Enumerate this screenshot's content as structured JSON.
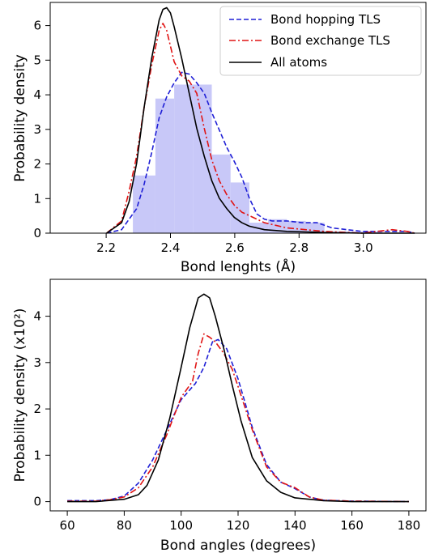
{
  "chart_data": [
    {
      "type": "line",
      "xlabel": "Bond lenghts (Å)",
      "ylabel": "Probability density",
      "xlim": [
        2.07,
        3.07
      ],
      "ylim": [
        0,
        6.6
      ],
      "xticks": [
        "2.2",
        "2.4",
        "2.6",
        "2.8",
        "3.0"
      ],
      "yticks": [
        "0",
        "1",
        "2",
        "3",
        "4",
        "5",
        "6"
      ],
      "legend": {
        "position": "top-right",
        "entries": [
          "Bond hopping TLS",
          "Bond exchange TLS",
          "All atoms"
        ]
      },
      "histogram": {
        "color": "#c8c8f8",
        "bin_edges": [
          2.29,
          2.35,
          2.4,
          2.45,
          2.5,
          2.55,
          2.6,
          2.65,
          2.7,
          2.75,
          2.8,
          2.85,
          2.9,
          2.95
        ],
        "values": [
          1.65,
          3.85,
          4.25,
          4.25,
          2.25,
          1.45,
          0.3,
          0.4,
          0.35,
          0.3,
          0.05,
          0.05,
          0.05
        ]
      },
      "series": [
        {
          "name": "Bond hopping TLS",
          "color": "#1f1fd6",
          "dash": "dashed",
          "x": [
            2.22,
            2.26,
            2.3,
            2.32,
            2.34,
            2.36,
            2.38,
            2.4,
            2.42,
            2.44,
            2.46,
            2.48,
            2.5,
            2.52,
            2.54,
            2.56,
            2.58,
            2.6,
            2.62,
            2.64,
            2.66,
            2.7,
            2.74,
            2.78,
            2.82,
            2.86,
            2.9,
            2.94,
            2.98,
            3.02,
            3.04
          ],
          "y": [
            0.0,
            0.1,
            0.7,
            1.4,
            2.3,
            3.3,
            3.9,
            4.3,
            4.6,
            4.55,
            4.3,
            4.0,
            3.45,
            2.95,
            2.45,
            2.05,
            1.6,
            1.0,
            0.55,
            0.4,
            0.35,
            0.35,
            0.3,
            0.3,
            0.15,
            0.1,
            0.05,
            0.05,
            0.05,
            0.05,
            0.0
          ]
        },
        {
          "name": "Bond exchange TLS",
          "color": "#e01414",
          "dash": "dashdot",
          "x": [
            2.22,
            2.26,
            2.28,
            2.3,
            2.32,
            2.34,
            2.36,
            2.37,
            2.38,
            2.4,
            2.42,
            2.44,
            2.46,
            2.48,
            2.5,
            2.52,
            2.54,
            2.56,
            2.58,
            2.6,
            2.64,
            2.7,
            2.8,
            2.9,
            2.98,
            3.02,
            3.04
          ],
          "y": [
            0.0,
            0.35,
            1.2,
            2.2,
            3.6,
            4.8,
            5.8,
            6.0,
            5.8,
            4.9,
            4.5,
            4.35,
            4.0,
            3.0,
            2.1,
            1.5,
            1.1,
            0.8,
            0.6,
            0.5,
            0.3,
            0.15,
            0.05,
            0.0,
            0.1,
            0.05,
            0.0
          ]
        },
        {
          "name": "All atoms",
          "color": "#000000",
          "dash": "solid",
          "x": [
            2.22,
            2.26,
            2.28,
            2.3,
            2.32,
            2.34,
            2.36,
            2.37,
            2.38,
            2.39,
            2.4,
            2.42,
            2.44,
            2.46,
            2.48,
            2.5,
            2.52,
            2.54,
            2.56,
            2.58,
            2.6,
            2.64,
            2.7,
            2.8,
            2.9,
            3.04
          ],
          "y": [
            0.0,
            0.3,
            0.9,
            2.0,
            3.6,
            5.0,
            6.1,
            6.4,
            6.45,
            6.3,
            5.9,
            5.0,
            4.0,
            3.0,
            2.2,
            1.5,
            1.0,
            0.7,
            0.45,
            0.3,
            0.2,
            0.1,
            0.05,
            0.02,
            0.0,
            0.0
          ]
        }
      ]
    },
    {
      "type": "line",
      "xlabel": "Bond angles (degrees)",
      "ylabel": "Probability density (x10²)",
      "xlim": [
        54,
        186
      ],
      "ylim": [
        -0.2,
        4.8
      ],
      "xticks": [
        "60",
        "80",
        "100",
        "120",
        "140",
        "160",
        "180"
      ],
      "yticks": [
        "0",
        "1",
        "2",
        "3",
        "4"
      ],
      "series": [
        {
          "name": "Bond hopping TLS",
          "color": "#1f1fd6",
          "dash": "dashed",
          "x": [
            60,
            70,
            75,
            80,
            85,
            90,
            95,
            100,
            105,
            108,
            111,
            113,
            116,
            120,
            125,
            130,
            135,
            140,
            145,
            150,
            160,
            180
          ],
          "y": [
            0.02,
            0.02,
            0.04,
            0.12,
            0.4,
            0.9,
            1.55,
            2.2,
            2.55,
            2.9,
            3.45,
            3.5,
            3.3,
            2.65,
            1.6,
            0.8,
            0.42,
            0.28,
            0.1,
            0.03,
            0.01,
            0.0
          ]
        },
        {
          "name": "Bond exchange TLS",
          "color": "#e01414",
          "dash": "dashdot",
          "x": [
            60,
            70,
            75,
            80,
            85,
            90,
            95,
            100,
            104,
            106,
            108,
            110,
            112,
            115,
            118,
            121,
            125,
            130,
            135,
            140,
            145,
            150,
            160,
            180
          ],
          "y": [
            0.01,
            0.01,
            0.04,
            0.1,
            0.3,
            0.75,
            1.45,
            2.25,
            2.6,
            3.2,
            3.62,
            3.55,
            3.45,
            3.2,
            2.85,
            2.3,
            1.55,
            0.75,
            0.42,
            0.3,
            0.1,
            0.03,
            0.01,
            0.0
          ]
        },
        {
          "name": "All atoms",
          "color": "#000000",
          "dash": "solid",
          "x": [
            60,
            70,
            80,
            85,
            88,
            92,
            96,
            100,
            103,
            106,
            108,
            110,
            112,
            115,
            118,
            121,
            125,
            130,
            135,
            140,
            150,
            160,
            180
          ],
          "y": [
            0.0,
            0.0,
            0.05,
            0.15,
            0.35,
            0.9,
            1.8,
            2.9,
            3.75,
            4.4,
            4.48,
            4.4,
            4.0,
            3.3,
            2.5,
            1.75,
            0.95,
            0.45,
            0.2,
            0.08,
            0.02,
            0.0,
            0.0
          ]
        }
      ]
    }
  ]
}
